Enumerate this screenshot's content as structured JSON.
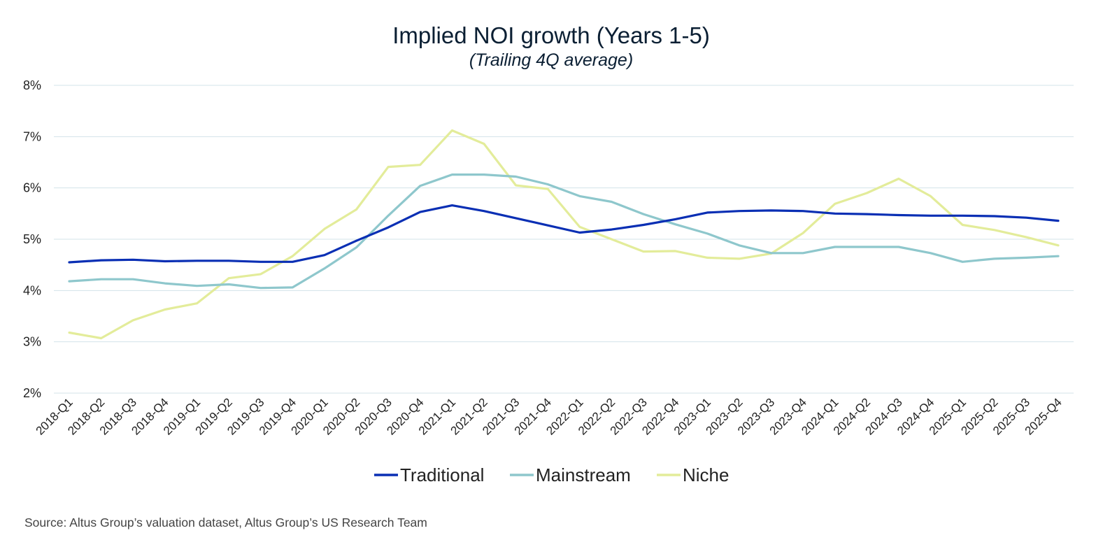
{
  "chart_data": {
    "type": "line",
    "title": "Implied NOI growth (Years 1-5)",
    "subtitle": "(Trailing 4Q average)",
    "source": "Source: Altus Group’s valuation dataset, Altus Group’s US Research Team",
    "ylim": [
      2,
      8
    ],
    "yticks": [
      "2%",
      "3%",
      "4%",
      "5%",
      "6%",
      "7%",
      "8%"
    ],
    "grid": true,
    "legend_position": "bottom",
    "categories": [
      "2018-Q1",
      "2018-Q2",
      "2018-Q3",
      "2018-Q4",
      "2019-Q1",
      "2019-Q2",
      "2019-Q3",
      "2019-Q4",
      "2020-Q1",
      "2020-Q2",
      "2020-Q3",
      "2020-Q4",
      "2021-Q1",
      "2021-Q2",
      "2021-Q3",
      "2021-Q4",
      "2022-Q1",
      "2022-Q2",
      "2022-Q3",
      "2022-Q4",
      "2023-Q1",
      "2023-Q2",
      "2023-Q3",
      "2023-Q4",
      "2024-Q1",
      "2024-Q2",
      "2024-Q3",
      "2024-Q4",
      "2025-Q1",
      "2025-Q2",
      "2025-Q3",
      "2025-Q4"
    ],
    "series": [
      {
        "name": "Traditional",
        "color": "#0a2fb4",
        "values": [
          4.55,
          4.59,
          4.6,
          4.57,
          4.58,
          4.58,
          4.56,
          4.56,
          4.69,
          4.97,
          5.23,
          5.53,
          5.66,
          5.55,
          5.41,
          5.27,
          5.13,
          5.19,
          5.28,
          5.39,
          5.52,
          5.55,
          5.56,
          5.55,
          5.5,
          5.49,
          5.47,
          5.46,
          5.46,
          5.45,
          5.42,
          5.36
        ]
      },
      {
        "name": "Mainstream",
        "color": "#8ec7cc",
        "values": [
          4.18,
          4.22,
          4.22,
          4.14,
          4.09,
          4.12,
          4.05,
          4.06,
          4.43,
          4.84,
          5.46,
          6.04,
          6.26,
          6.26,
          6.22,
          6.07,
          5.84,
          5.73,
          5.49,
          5.29,
          5.11,
          4.88,
          4.73,
          4.73,
          4.85,
          4.85,
          4.85,
          4.73,
          4.56,
          4.62,
          4.64,
          4.67
        ]
      },
      {
        "name": "Niche",
        "color": "#e3ec9a",
        "values": [
          3.18,
          3.07,
          3.42,
          3.63,
          3.75,
          4.24,
          4.32,
          4.67,
          5.2,
          5.58,
          6.41,
          6.45,
          7.12,
          6.86,
          6.05,
          5.98,
          5.24,
          5.0,
          4.76,
          4.77,
          4.64,
          4.62,
          4.72,
          5.12,
          5.69,
          5.9,
          6.18,
          5.84,
          5.28,
          5.18,
          5.04,
          4.88
        ]
      }
    ]
  }
}
